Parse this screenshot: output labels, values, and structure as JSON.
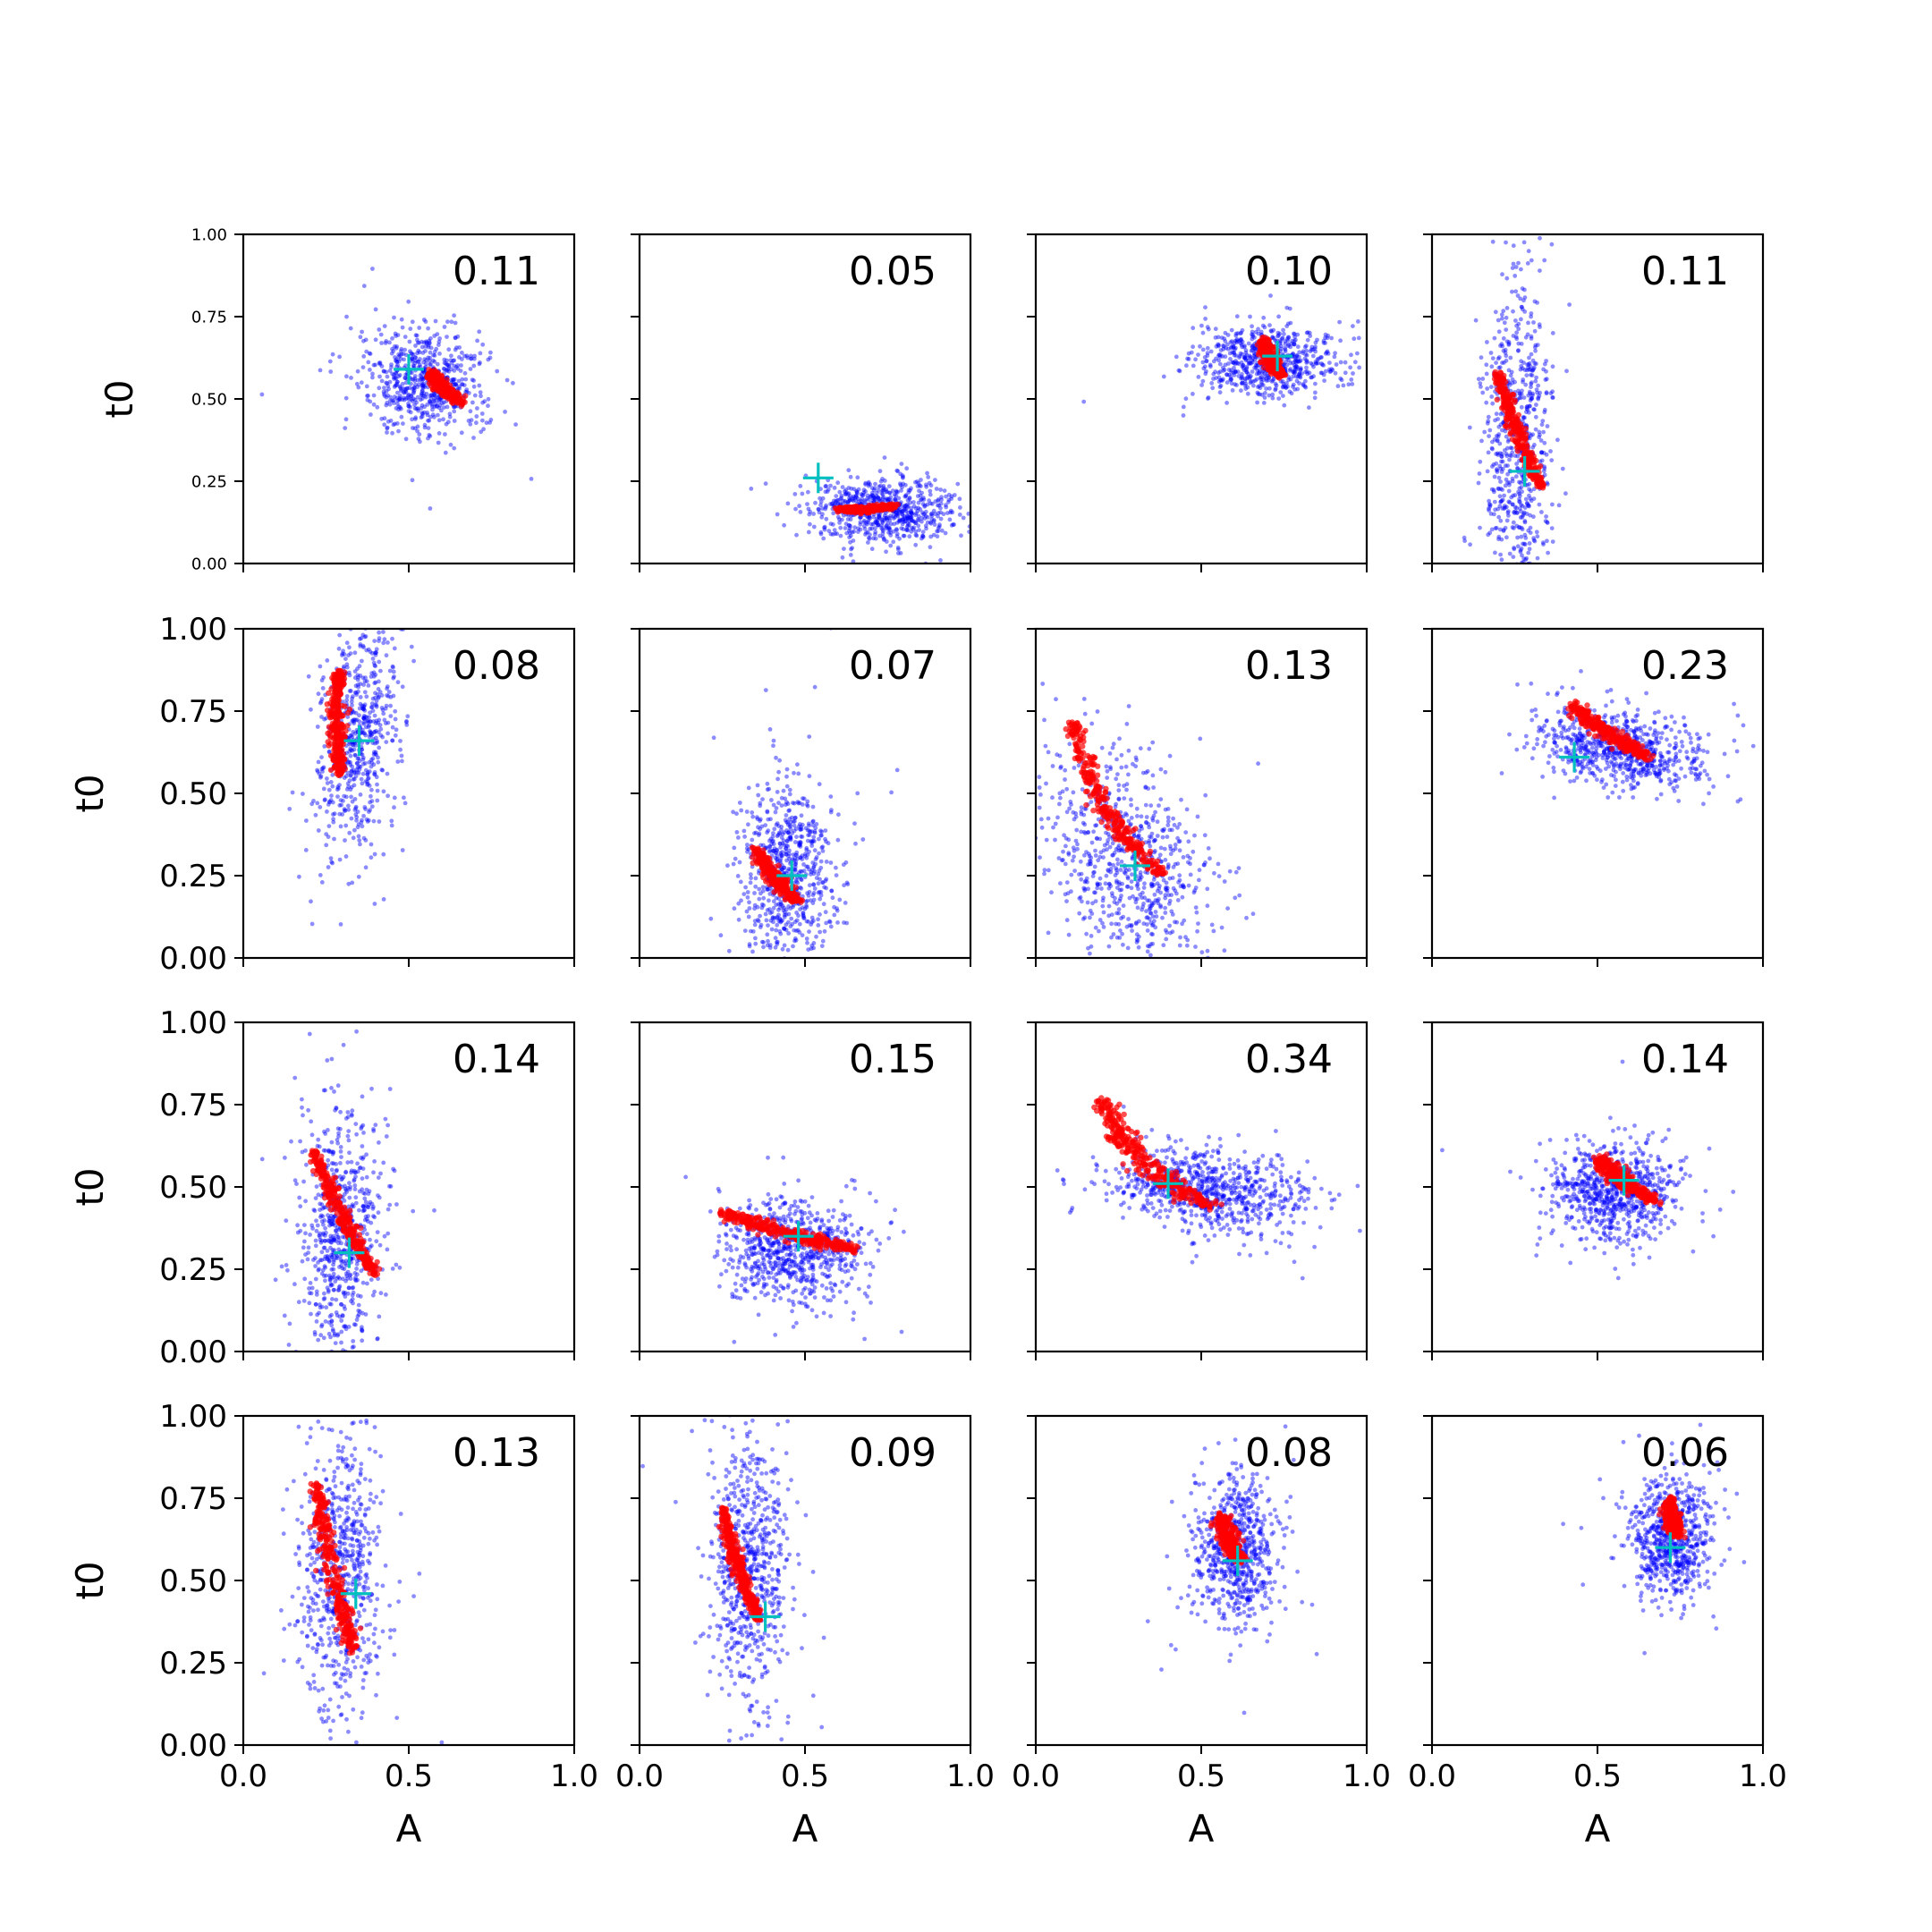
{
  "figure": {
    "rows": 4,
    "cols": 4,
    "colors": {
      "samples": "#0000ff",
      "posterior": "#ff0000",
      "marker": "#00bfbf",
      "axis": "#000000",
      "background": "#ffffff"
    }
  },
  "chart_data": [
    {
      "type": "scatter",
      "annotation": "0.11",
      "xlim": [
        0,
        1
      ],
      "ylim": [
        0,
        1
      ],
      "scatter": {
        "cx": 0.55,
        "cy": 0.55,
        "sx": 0.09,
        "sy": 0.08,
        "rho": -0.15,
        "n": 650
      },
      "posterior": {
        "x0": 0.57,
        "y0": 0.58,
        "x1": 0.66,
        "y1": 0.49,
        "width": 0.022
      },
      "marker": {
        "x": 0.5,
        "y": 0.59
      }
    },
    {
      "type": "scatter",
      "annotation": "0.05",
      "xlim": [
        0,
        1
      ],
      "ylim": [
        0,
        1
      ],
      "scatter": {
        "cx": 0.74,
        "cy": 0.16,
        "sx": 0.11,
        "sy": 0.05,
        "rho": 0.0,
        "n": 700
      },
      "posterior": {
        "x0": 0.6,
        "y0": 0.165,
        "x1": 0.77,
        "y1": 0.175,
        "width": 0.014
      },
      "marker": {
        "x": 0.54,
        "y": 0.26
      }
    },
    {
      "type": "scatter",
      "annotation": "0.10",
      "xlim": [
        0,
        1
      ],
      "ylim": [
        0,
        1
      ],
      "scatter": {
        "cx": 0.7,
        "cy": 0.61,
        "sx": 0.1,
        "sy": 0.05,
        "rho": 0.0,
        "n": 700
      },
      "posterior": {
        "x0": 0.69,
        "y0": 0.68,
        "x1": 0.74,
        "y1": 0.57,
        "width": 0.022
      },
      "marker": {
        "x": 0.73,
        "y": 0.63
      }
    },
    {
      "type": "scatter",
      "annotation": "0.11",
      "xlim": [
        0,
        1
      ],
      "ylim": [
        0,
        1
      ],
      "scatter": {
        "cx": 0.26,
        "cy": 0.4,
        "sx": 0.05,
        "sy": 0.25,
        "rho": 0.0,
        "n": 700
      },
      "posterior": {
        "x0": 0.2,
        "y0": 0.58,
        "x1": 0.33,
        "y1": 0.23,
        "width": 0.02
      },
      "marker": {
        "x": 0.28,
        "y": 0.28
      }
    },
    {
      "type": "scatter",
      "annotation": "0.08",
      "xlim": [
        0,
        1
      ],
      "ylim": [
        0,
        1
      ],
      "scatter": {
        "cx": 0.34,
        "cy": 0.67,
        "sx": 0.06,
        "sy": 0.17,
        "rho": 0.25,
        "n": 650
      },
      "posterior": {
        "x0": 0.29,
        "y0": 0.87,
        "x1": 0.29,
        "y1": 0.56,
        "width": 0.022
      },
      "marker": {
        "x": 0.35,
        "y": 0.66
      }
    },
    {
      "type": "scatter",
      "annotation": "0.07",
      "xlim": [
        0,
        1
      ],
      "ylim": [
        0,
        1
      ],
      "scatter": {
        "cx": 0.45,
        "cy": 0.26,
        "sx": 0.07,
        "sy": 0.14,
        "rho": 0.0,
        "n": 700
      },
      "posterior": {
        "x0": 0.35,
        "y0": 0.33,
        "x1": 0.48,
        "y1": 0.17,
        "width": 0.022
      },
      "marker": {
        "x": 0.46,
        "y": 0.25
      }
    },
    {
      "type": "scatter",
      "annotation": "0.13",
      "xlim": [
        0,
        1
      ],
      "ylim": [
        0,
        1
      ],
      "scatter": {
        "cx": 0.27,
        "cy": 0.3,
        "sx": 0.12,
        "sy": 0.16,
        "rho": -0.35,
        "n": 750
      },
      "posterior": {
        "x0": 0.11,
        "y0": 0.72,
        "x1": 0.38,
        "y1": 0.25,
        "width": 0.03
      },
      "marker": {
        "x": 0.3,
        "y": 0.28
      }
    },
    {
      "type": "scatter",
      "annotation": "0.23",
      "xlim": [
        0,
        1
      ],
      "ylim": [
        0,
        1
      ],
      "scatter": {
        "cx": 0.57,
        "cy": 0.64,
        "sx": 0.12,
        "sy": 0.06,
        "rho": -0.35,
        "n": 750
      },
      "posterior": {
        "x0": 0.42,
        "y0": 0.77,
        "x1": 0.65,
        "y1": 0.61,
        "width": 0.03
      },
      "marker": {
        "x": 0.43,
        "y": 0.61
      }
    },
    {
      "type": "scatter",
      "annotation": "0.14",
      "xlim": [
        0,
        1
      ],
      "ylim": [
        0,
        1
      ],
      "scatter": {
        "cx": 0.3,
        "cy": 0.37,
        "sx": 0.06,
        "sy": 0.19,
        "rho": 0.0,
        "n": 700
      },
      "posterior": {
        "x0": 0.21,
        "y0": 0.61,
        "x1": 0.4,
        "y1": 0.23,
        "width": 0.022
      },
      "marker": {
        "x": 0.32,
        "y": 0.3
      }
    },
    {
      "type": "scatter",
      "annotation": "0.15",
      "xlim": [
        0,
        1
      ],
      "ylim": [
        0,
        1
      ],
      "scatter": {
        "cx": 0.47,
        "cy": 0.3,
        "sx": 0.1,
        "sy": 0.08,
        "rho": 0.0,
        "n": 750
      },
      "posterior": {
        "x0": 0.25,
        "y0": 0.42,
        "x1": 0.65,
        "y1": 0.31,
        "width": 0.028
      },
      "marker": {
        "x": 0.48,
        "y": 0.35
      }
    },
    {
      "type": "scatter",
      "annotation": "0.34",
      "xlim": [
        0,
        1
      ],
      "ylim": [
        0,
        1
      ],
      "scatter": {
        "cx": 0.52,
        "cy": 0.49,
        "sx": 0.14,
        "sy": 0.06,
        "rho": -0.25,
        "n": 800
      },
      "posterior": {
        "x0": 0.2,
        "y0": 0.76,
        "x1": 0.53,
        "y1": 0.44,
        "width": 0.04
      },
      "marker": {
        "x": 0.4,
        "y": 0.51
      }
    },
    {
      "type": "scatter",
      "annotation": "0.14",
      "xlim": [
        0,
        1
      ],
      "ylim": [
        0,
        1
      ],
      "scatter": {
        "cx": 0.55,
        "cy": 0.49,
        "sx": 0.1,
        "sy": 0.07,
        "rho": 0.0,
        "n": 750
      },
      "posterior": {
        "x0": 0.5,
        "y0": 0.59,
        "x1": 0.67,
        "y1": 0.46,
        "width": 0.03
      },
      "marker": {
        "x": 0.58,
        "y": 0.52
      }
    },
    {
      "type": "scatter",
      "annotation": "0.13",
      "xlim": [
        0,
        1
      ],
      "ylim": [
        0,
        1
      ],
      "scatter": {
        "cx": 0.29,
        "cy": 0.52,
        "sx": 0.06,
        "sy": 0.22,
        "rho": 0.0,
        "n": 700
      },
      "posterior": {
        "x0": 0.22,
        "y0": 0.79,
        "x1": 0.33,
        "y1": 0.29,
        "width": 0.026
      },
      "marker": {
        "x": 0.34,
        "y": 0.46
      }
    },
    {
      "type": "scatter",
      "annotation": "0.09",
      "xlim": [
        0,
        1
      ],
      "ylim": [
        0,
        1
      ],
      "scatter": {
        "cx": 0.33,
        "cy": 0.53,
        "sx": 0.06,
        "sy": 0.2,
        "rho": 0.0,
        "n": 700
      },
      "posterior": {
        "x0": 0.25,
        "y0": 0.72,
        "x1": 0.36,
        "y1": 0.38,
        "width": 0.02
      },
      "marker": {
        "x": 0.38,
        "y": 0.39
      }
    },
    {
      "type": "scatter",
      "annotation": "0.08",
      "xlim": [
        0,
        1
      ],
      "ylim": [
        0,
        1
      ],
      "scatter": {
        "cx": 0.6,
        "cy": 0.59,
        "sx": 0.06,
        "sy": 0.11,
        "rho": 0.0,
        "n": 700
      },
      "posterior": {
        "x0": 0.56,
        "y0": 0.7,
        "x1": 0.62,
        "y1": 0.56,
        "width": 0.026
      },
      "marker": {
        "x": 0.61,
        "y": 0.56
      }
    },
    {
      "type": "scatter",
      "annotation": "0.06",
      "xlim": [
        0,
        1
      ],
      "ylim": [
        0,
        1
      ],
      "scatter": {
        "cx": 0.72,
        "cy": 0.63,
        "sx": 0.06,
        "sy": 0.09,
        "rho": 0.0,
        "n": 700
      },
      "posterior": {
        "x0": 0.72,
        "y0": 0.75,
        "x1": 0.74,
        "y1": 0.64,
        "width": 0.022
      },
      "marker": {
        "x": 0.72,
        "y": 0.6
      }
    }
  ],
  "axes": {
    "xlabel": "A",
    "ylabel": "t0",
    "xticks": [
      "0.0",
      "0.5",
      "1.0"
    ],
    "yticks": [
      "0.00",
      "0.25",
      "0.50",
      "0.75",
      "1.00"
    ]
  }
}
